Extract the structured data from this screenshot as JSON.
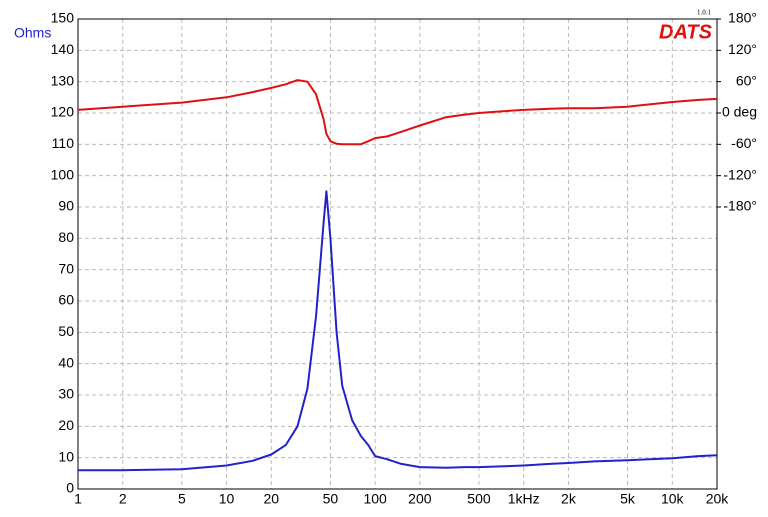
{
  "chart_data": {
    "type": "line",
    "y_label": "Ohms",
    "logo": "DATS",
    "version": "1.0.1",
    "x": [
      1,
      2,
      5,
      10,
      15,
      20,
      25,
      30,
      35,
      40,
      45,
      47,
      50,
      55,
      60,
      70,
      80,
      90,
      100,
      120,
      150,
      200,
      300,
      400,
      500,
      700,
      1000,
      1500,
      2000,
      3000,
      5000,
      10000,
      15000,
      20000
    ],
    "series": [
      {
        "name": "Ohms",
        "color": "#2222cc",
        "values": [
          6,
          6,
          6.3,
          7.5,
          9,
          11,
          14,
          20,
          32,
          55,
          85,
          95,
          80,
          50,
          33,
          22,
          17,
          14,
          10.5,
          9.5,
          8,
          7,
          6.8,
          7,
          7,
          7.2,
          7.5,
          8,
          8.3,
          8.8,
          9.2,
          9.8,
          10.5,
          10.8
        ]
      },
      {
        "name": "deg",
        "color": "#dd1111",
        "axis": "y2",
        "values": [
          6,
          12,
          20,
          30,
          40,
          48,
          55,
          63,
          60,
          36,
          -12,
          -40,
          -54,
          -59,
          -60,
          -60,
          -60,
          -54,
          -48,
          -45,
          -36,
          -24,
          -8,
          -3,
          0,
          3,
          6,
          8,
          9,
          9,
          12,
          21,
          25,
          27
        ]
      }
    ],
    "xlim": [
      1,
      20000
    ],
    "log_x": true,
    "xticks": [
      1,
      2,
      5,
      10,
      20,
      50,
      100,
      200,
      500,
      {
        "value": 1000,
        "label": "1kHz"
      },
      {
        "value": 2000,
        "label": "2k"
      },
      {
        "value": 5000,
        "label": "5k"
      },
      {
        "value": 10000,
        "label": "10k"
      },
      {
        "value": 20000,
        "label": "20k"
      }
    ],
    "ylim": [
      0,
      150
    ],
    "yticks": [
      0,
      10,
      20,
      30,
      40,
      50,
      60,
      70,
      80,
      90,
      100,
      110,
      120,
      130,
      140,
      150
    ],
    "y2lim": [
      -720,
      180
    ],
    "y2ticks": [
      {
        "value": 180,
        "label": "180°"
      },
      {
        "value": 120,
        "label": "120°"
      },
      {
        "value": 60,
        "label": "60°"
      },
      {
        "value": 0,
        "label": "0 deg"
      },
      {
        "value": -60,
        "label": "-60°"
      },
      {
        "value": -120,
        "label": "-120°"
      },
      {
        "value": -180,
        "label": "-180°"
      }
    ],
    "grid": true
  }
}
